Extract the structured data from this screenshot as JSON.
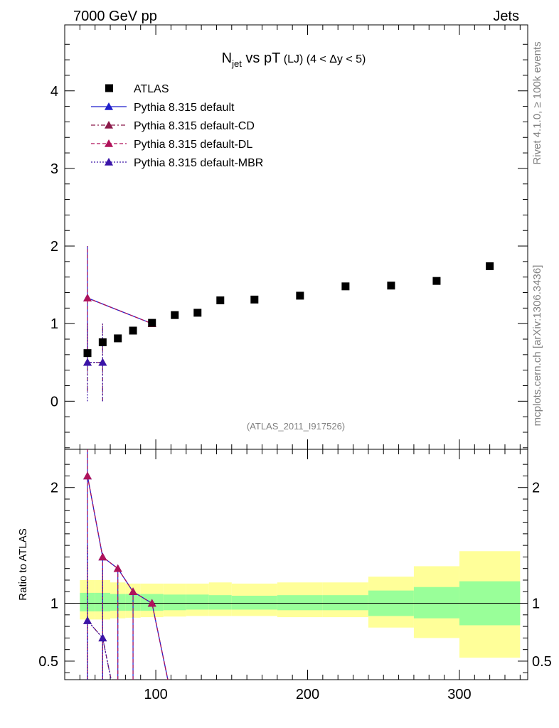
{
  "header": {
    "left": "7000 GeV pp",
    "right": "Jets"
  },
  "side_text": {
    "rivet": "Rivet 4.1.0, ≥ 100k events",
    "mcplots": "mcplots.cern.ch [arXiv:1306.3436]"
  },
  "plot": {
    "title_main": "N",
    "title_sub": "jet",
    "title_rest": " vs pT",
    "title_small": " (LJ) (4 < Δy < 5)",
    "watermark": "(ATLAS_2011_I917526)",
    "ratio_ylabel": "Ratio to ATLAS"
  },
  "legend": [
    {
      "label": "ATLAS"
    },
    {
      "label": "Pythia 8.315 default"
    },
    {
      "label": "Pythia 8.315 default-CD"
    },
    {
      "label": "Pythia 8.315 default-DL"
    },
    {
      "label": "Pythia 8.315 default-MBR"
    }
  ],
  "colors": {
    "atlas": "#000000",
    "default": "#1f1fcc",
    "cd": "#8b1a4a",
    "dl": "#b0125a",
    "mbr": "#3a14a8",
    "band_inner": "#99ff99",
    "band_outer": "#ffff99"
  },
  "chart_data": {
    "type": "scatter",
    "xlim": [
      40,
      345
    ],
    "main": {
      "ylim": [
        -0.62,
        4.85
      ],
      "yticks": [
        0,
        1,
        2,
        3,
        4
      ],
      "yticklabels": [
        "0",
        "1",
        "2",
        "3",
        "4"
      ]
    },
    "ratio": {
      "ylim": [
        0.34,
        2.33
      ],
      "yticks": [
        0.5,
        1,
        2
      ],
      "yticklabels": [
        "0.5",
        "1",
        "2"
      ]
    },
    "xticks": [
      100,
      200,
      300
    ],
    "xticklabels": [
      "100",
      "200",
      "300"
    ],
    "atlas": {
      "x": [
        55,
        65,
        75,
        85,
        97.5,
        112.5,
        127.5,
        142.5,
        165,
        195,
        225,
        255,
        285,
        320
      ],
      "y": [
        0.62,
        0.76,
        0.81,
        0.91,
        1.01,
        1.11,
        1.14,
        1.3,
        1.31,
        1.36,
        1.48,
        1.49,
        1.55,
        1.74
      ]
    },
    "bins": [
      [
        50,
        60
      ],
      [
        60,
        70
      ],
      [
        70,
        80
      ],
      [
        80,
        90
      ],
      [
        90,
        105
      ],
      [
        105,
        120
      ],
      [
        120,
        135
      ],
      [
        135,
        150
      ],
      [
        150,
        180
      ],
      [
        180,
        210
      ],
      [
        210,
        240
      ],
      [
        240,
        270
      ],
      [
        270,
        300
      ],
      [
        300,
        340
      ]
    ],
    "band_inner": [
      [
        0.93,
        1.09
      ],
      [
        0.93,
        1.09
      ],
      [
        0.935,
        1.08
      ],
      [
        0.935,
        1.08
      ],
      [
        0.935,
        1.08
      ],
      [
        0.94,
        1.075
      ],
      [
        0.945,
        1.075
      ],
      [
        0.945,
        1.07
      ],
      [
        0.945,
        1.065
      ],
      [
        0.94,
        1.07
      ],
      [
        0.94,
        1.07
      ],
      [
        0.89,
        1.11
      ],
      [
        0.87,
        1.14
      ],
      [
        0.81,
        1.19
      ]
    ],
    "band_outer": [
      [
        0.86,
        1.2
      ],
      [
        0.86,
        1.2
      ],
      [
        0.87,
        1.18
      ],
      [
        0.875,
        1.17
      ],
      [
        0.88,
        1.17
      ],
      [
        0.885,
        1.17
      ],
      [
        0.89,
        1.17
      ],
      [
        0.89,
        1.18
      ],
      [
        0.89,
        1.17
      ],
      [
        0.88,
        1.18
      ],
      [
        0.88,
        1.18
      ],
      [
        0.79,
        1.23
      ],
      [
        0.7,
        1.32
      ],
      [
        0.53,
        1.45
      ]
    ],
    "series": [
      {
        "name": "Pythia 8.315 default",
        "color_key": "default",
        "dash": "",
        "x": [
          55,
          97.5
        ],
        "y": [
          1.33,
          1.0
        ],
        "err": [
          [
            0.67,
            2.0
          ],
          [
            1.0,
            1.0
          ]
        ],
        "ratio_x": [
          55,
          65,
          75,
          85,
          97.5,
          112.5
        ],
        "ratio_y": [
          2.1,
          1.4,
          1.3,
          1.1,
          1.0,
          0.0
        ],
        "ratio_err": [
          [
            0.0,
            3.0
          ],
          [
            0.0,
            1.4
          ],
          [
            0.0,
            1.3
          ],
          [
            0.0,
            1.1
          ],
          [
            1.0,
            1.0
          ],
          [
            0.0,
            0.0
          ]
        ]
      },
      {
        "name": "Pythia 8.315 default-CD",
        "color_key": "cd",
        "dash": "6,3,2,3",
        "x": [
          55,
          65
        ],
        "y": [
          0.5,
          0.5
        ],
        "err": [
          [
            0.13,
            1.0
          ],
          [
            0.0,
            1.0
          ]
        ],
        "ratio_x": [
          55,
          65,
          75
        ],
        "ratio_y": [
          0.85,
          0.7,
          0.0
        ],
        "ratio_err": [
          [
            0.0,
            1.5
          ],
          [
            0.0,
            1.3
          ],
          [
            0.0,
            0.0
          ]
        ]
      },
      {
        "name": "Pythia 8.315 default-DL",
        "color_key": "dl",
        "dash": "5,3",
        "x": [
          55,
          97.5
        ],
        "y": [
          1.33,
          1.0
        ],
        "err": [
          [
            0.67,
            2.0
          ],
          [
            1.0,
            1.0
          ]
        ],
        "ratio_x": [
          55,
          65,
          75,
          85,
          97.5,
          112.5
        ],
        "ratio_y": [
          2.1,
          1.4,
          1.3,
          1.1,
          1.0,
          0.0
        ],
        "ratio_err": [
          [
            0.0,
            3.0
          ],
          [
            0.0,
            1.4
          ],
          [
            0.0,
            1.3
          ],
          [
            0.0,
            1.1
          ],
          [
            1.0,
            1.0
          ],
          [
            0.0,
            0.0
          ]
        ]
      },
      {
        "name": "Pythia 8.315 default-MBR",
        "color_key": "mbr",
        "dash": "2,2",
        "x": [
          55,
          65
        ],
        "y": [
          0.5,
          0.5
        ],
        "err": [
          [
            0.0,
            1.0
          ],
          [
            0.0,
            1.0
          ]
        ],
        "ratio_x": [
          55,
          65,
          75
        ],
        "ratio_y": [
          0.85,
          0.7,
          0.0
        ],
        "ratio_err": [
          [
            0.0,
            1.5
          ],
          [
            0.0,
            1.3
          ],
          [
            0.0,
            0.0
          ]
        ]
      }
    ]
  }
}
